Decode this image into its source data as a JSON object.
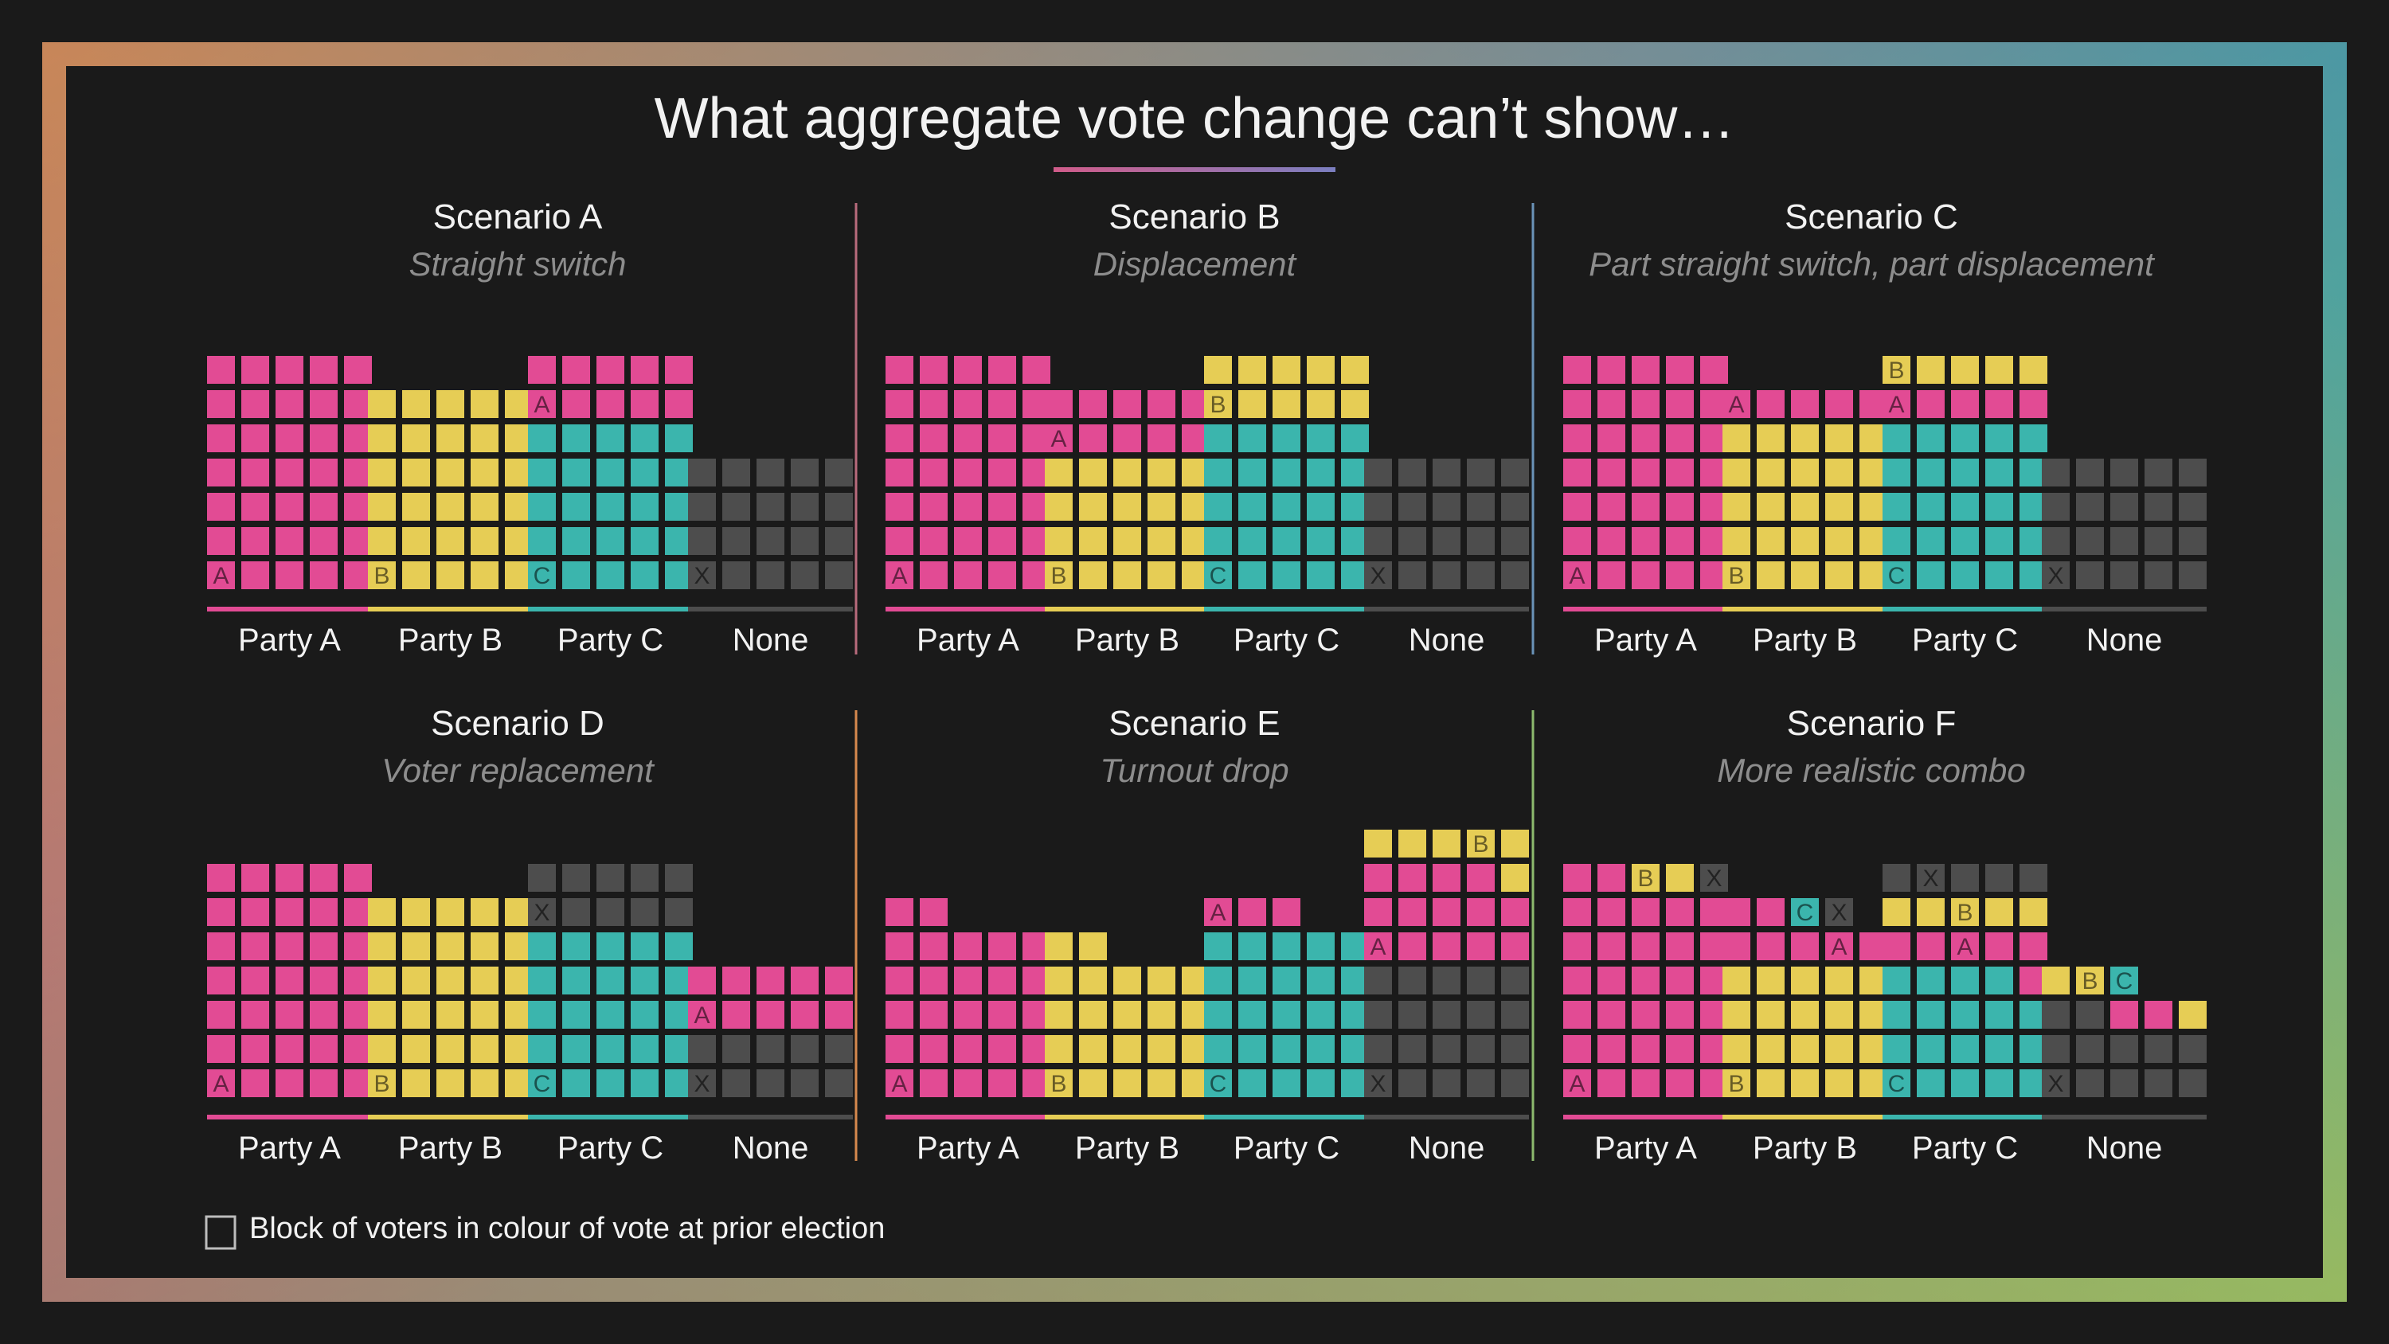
{
  "title": "What aggregate vote change can’t show…",
  "legend": {
    "text": "Block of voters in colour of vote at prior election"
  },
  "colors": {
    "A": "#e24b94",
    "B": "#e6cd55",
    "C": "#3bb5ad",
    "X": "#4d4d4d",
    "background": "#1a1a1a"
  },
  "labels": [
    "Party A",
    "Party B",
    "Party C",
    "None"
  ],
  "scenarios": [
    {
      "title": "Scenario A",
      "subtitle": "Straight switch",
      "bars": [
        {
          "party": "Party A",
          "blocks": [
            [
              "A",
              35
            ]
          ],
          "marked": []
        },
        {
          "party": "Party B",
          "blocks": [
            [
              "B",
              30
            ]
          ],
          "marked": []
        },
        {
          "party": "Party C",
          "blocks": [
            [
              "C",
              25
            ],
            [
              "A",
              10
            ]
          ],
          "marked": [
            [
              1,
              0
            ]
          ]
        },
        {
          "party": "None",
          "blocks": [
            [
              "X",
              20
            ]
          ],
          "marked": []
        }
      ]
    },
    {
      "title": "Scenario B",
      "subtitle": "Displacement",
      "bars": [
        {
          "party": "Party A",
          "blocks": [
            [
              "A",
              35
            ]
          ],
          "marked": []
        },
        {
          "party": "Party B",
          "blocks": [
            [
              "B",
              20
            ],
            [
              "A",
              10
            ]
          ],
          "marked": [
            [
              1,
              0
            ]
          ]
        },
        {
          "party": "Party C",
          "blocks": [
            [
              "C",
              25
            ],
            [
              "B",
              10
            ]
          ],
          "marked": [
            [
              1,
              0
            ]
          ]
        },
        {
          "party": "None",
          "blocks": [
            [
              "X",
              20
            ]
          ],
          "marked": []
        }
      ]
    },
    {
      "title": "Scenario C",
      "subtitle": "Part straight switch, part displacement",
      "bars": [
        {
          "party": "Party A",
          "blocks": [
            [
              "A",
              35
            ]
          ],
          "marked": []
        },
        {
          "party": "Party B",
          "blocks": [
            [
              "B",
              25
            ],
            [
              "A",
              5
            ]
          ],
          "marked": [
            [
              1,
              0
            ]
          ]
        },
        {
          "party": "Party C",
          "blocks": [
            [
              "C",
              25
            ],
            [
              "A",
              5
            ],
            [
              "B",
              5
            ]
          ],
          "marked": [
            [
              1,
              0
            ],
            [
              2,
              0
            ]
          ]
        },
        {
          "party": "None",
          "blocks": [
            [
              "X",
              20
            ]
          ],
          "marked": []
        }
      ]
    },
    {
      "title": "Scenario D",
      "subtitle": "Voter replacement",
      "bars": [
        {
          "party": "Party A",
          "blocks": [
            [
              "A",
              35
            ]
          ],
          "marked": []
        },
        {
          "party": "Party B",
          "blocks": [
            [
              "B",
              30
            ]
          ],
          "marked": []
        },
        {
          "party": "Party C",
          "blocks": [
            [
              "C",
              25
            ],
            [
              "X",
              10
            ]
          ],
          "marked": [
            [
              1,
              0
            ]
          ]
        },
        {
          "party": "None",
          "blocks": [
            [
              "X",
              10
            ],
            [
              "A",
              10
            ]
          ],
          "marked": [
            [
              1,
              0
            ]
          ]
        }
      ]
    },
    {
      "title": "Scenario E",
      "subtitle": "Turnout drop",
      "bars": [
        {
          "party": "Party A",
          "blocks": [
            [
              "A",
              27
            ]
          ],
          "marked": []
        },
        {
          "party": "Party B",
          "blocks": [
            [
              "B",
              22
            ]
          ],
          "marked": []
        },
        {
          "party": "Party C",
          "blocks": [
            [
              "C",
              25
            ],
            [
              "A",
              3
            ]
          ],
          "marked": [
            [
              1,
              0
            ]
          ]
        },
        {
          "party": "None",
          "blocks": [
            [
              "X",
              20
            ],
            [
              "A",
              14
            ],
            [
              "B",
              6
            ]
          ],
          "marked": [
            [
              1,
              0
            ],
            [
              2,
              4
            ]
          ]
        }
      ]
    },
    {
      "title": "Scenario F",
      "subtitle": "More realistic combo",
      "bars": [
        {
          "party": "Party A",
          "blocks": [
            [
              "A",
              32
            ],
            [
              "B",
              2
            ],
            [
              "X",
              1
            ]
          ],
          "marked": [
            [
              1,
              0
            ],
            [
              2,
              0
            ]
          ]
        },
        {
          "party": "Party B",
          "blocks": [
            [
              "B",
              20
            ],
            [
              "A",
              7
            ],
            [
              "C",
              1
            ],
            [
              "X",
              1
            ]
          ],
          "marked": [
            [
              1,
              3
            ],
            [
              2,
              0
            ],
            [
              3,
              0
            ]
          ]
        },
        {
          "party": "Party C",
          "blocks": [
            [
              "C",
              19
            ],
            [
              "A",
              6
            ],
            [
              "B",
              5
            ],
            [
              "X",
              5
            ]
          ],
          "marked": [
            [
              1,
              3
            ],
            [
              2,
              2
            ],
            [
              3,
              1
            ]
          ]
        },
        {
          "party": "None",
          "blocks": [
            [
              "X",
              12
            ],
            [
              "A",
              2
            ],
            [
              "B",
              3
            ],
            [
              "C",
              1
            ]
          ],
          "marked": [
            [
              1,
              4
            ],
            [
              2,
              2
            ],
            [
              3,
              0
            ]
          ]
        }
      ]
    }
  ]
}
